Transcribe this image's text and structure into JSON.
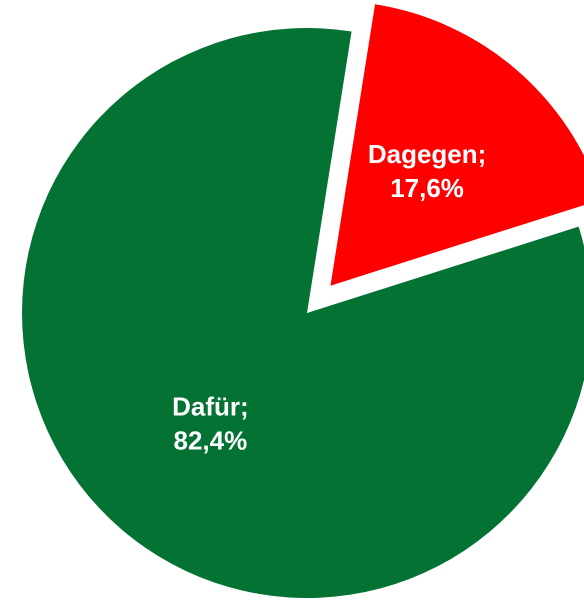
{
  "chart_data": {
    "type": "pie",
    "categories": [
      "Dafür;",
      "Dagegen;"
    ],
    "values": [
      82.4,
      17.6
    ],
    "value_labels": [
      "82,4%",
      "17,6%"
    ],
    "colors": [
      "#037233",
      "#fe0000"
    ]
  }
}
